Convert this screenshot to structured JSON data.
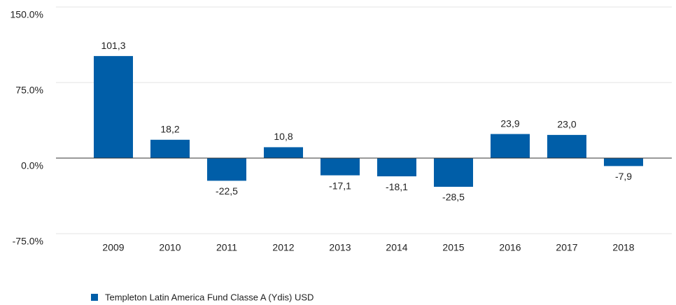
{
  "chart_data": {
    "type": "bar",
    "categories": [
      "2009",
      "2010",
      "2011",
      "2012",
      "2013",
      "2014",
      "2015",
      "2016",
      "2017",
      "2018"
    ],
    "series": [
      {
        "name": "Templeton Latin America Fund Classe A (Ydis) USD",
        "color": "#005ea8",
        "values": [
          101.3,
          18.2,
          -22.5,
          10.8,
          -17.1,
          -18.1,
          -28.5,
          23.9,
          23.0,
          -7.9
        ],
        "value_labels": [
          "101,3",
          "18,2",
          "-22,5",
          "10,8",
          "-17,1",
          "-18,1",
          "-28,5",
          "23,9",
          "23,0",
          "-7,9"
        ]
      }
    ],
    "ylim": [
      -75,
      150
    ],
    "yticks": [
      {
        "value": 150,
        "label": "150.0%"
      },
      {
        "value": 75,
        "label": "75.0%"
      },
      {
        "value": 0,
        "label": "0.0%"
      },
      {
        "value": -75,
        "label": "-75.0%"
      }
    ],
    "grid": true,
    "legend": "bottom-left"
  }
}
